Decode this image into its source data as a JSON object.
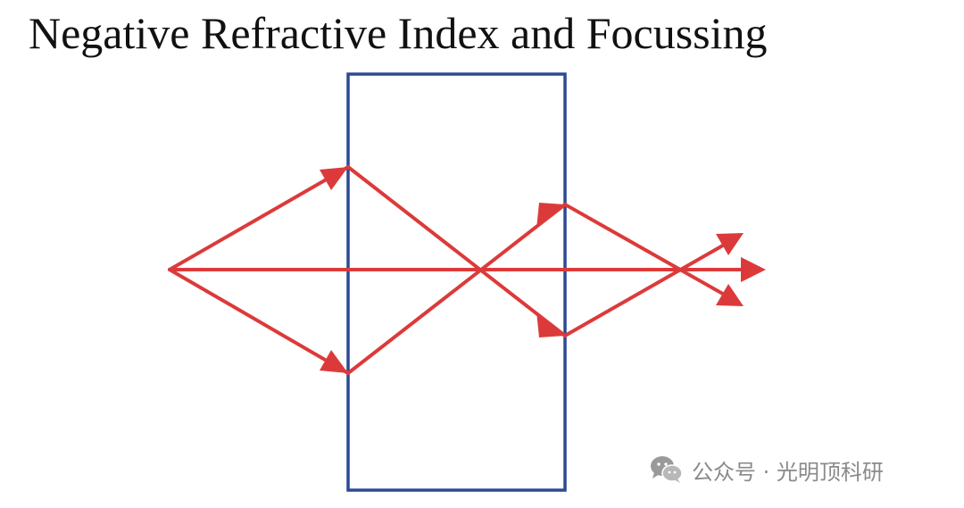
{
  "title": "Negative Refractive Index and Focussing",
  "colors": {
    "ray": "#dc3a3a",
    "slab": "#2c4a94",
    "text": "#111111",
    "watermark": "#8a8a8a"
  },
  "slab": {
    "description": "negative-index slab",
    "outline_color": "#2c4a94"
  },
  "rays": [
    {
      "name": "upper-incident-ray"
    },
    {
      "name": "axis-ray"
    },
    {
      "name": "lower-incident-ray"
    },
    {
      "name": "upper-inner-ray"
    },
    {
      "name": "lower-inner-ray"
    },
    {
      "name": "upper-exit-ray"
    },
    {
      "name": "lower-exit-ray"
    }
  ],
  "watermark": {
    "icon": "wechat-icon",
    "text": "公众号 · 光明顶科研"
  }
}
